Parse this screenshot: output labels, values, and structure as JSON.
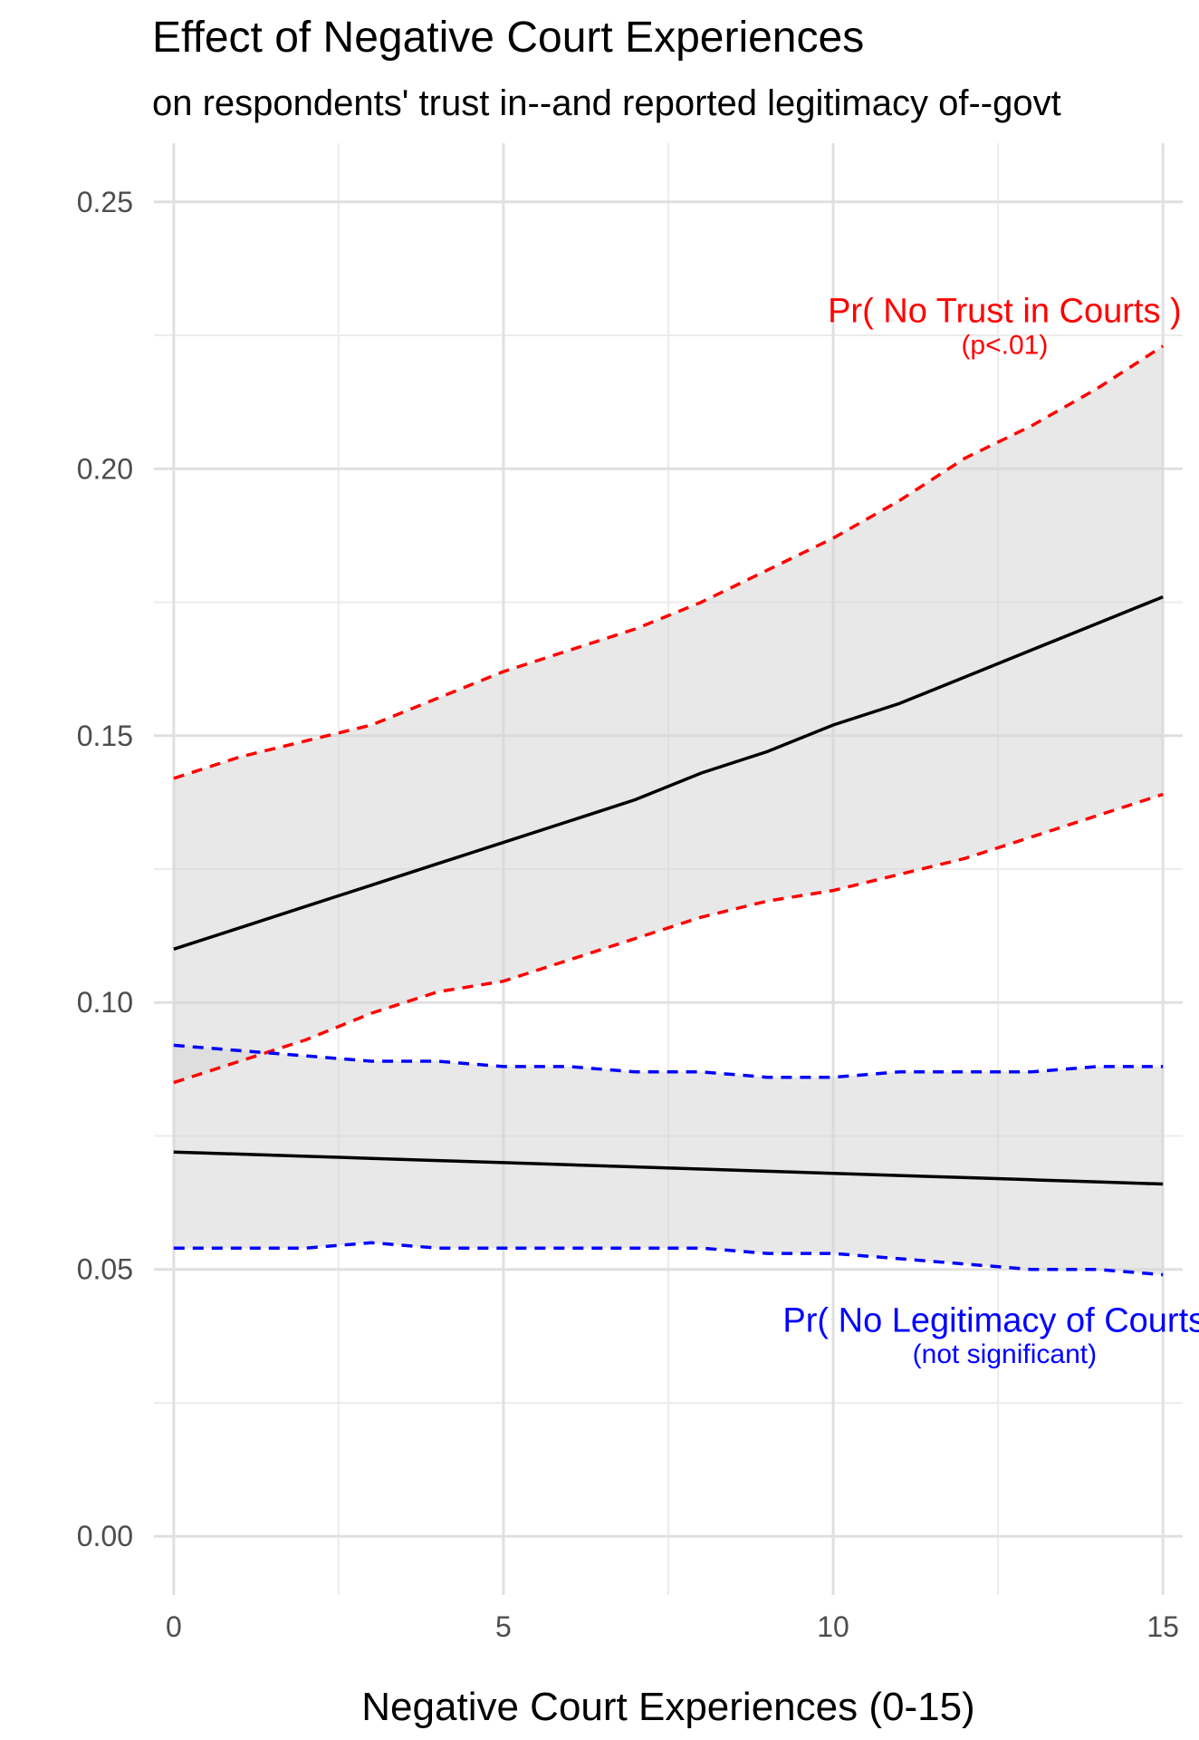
{
  "chart_data": {
    "type": "line",
    "title": "Effect of Negative Court Experiences",
    "subtitle": "on respondents' trust in--and reported legitimacy of--govt",
    "xlabel": "Negative Court Experiences (0-15)",
    "ylabel": "",
    "xlim": [
      -0.3,
      15.3
    ],
    "ylim": [
      -0.011,
      0.261
    ],
    "x_ticks": [
      0,
      5,
      10,
      15
    ],
    "x_tick_labels": [
      "0",
      "5",
      "10",
      "15"
    ],
    "y_ticks": [
      0.0,
      0.05,
      0.1,
      0.15,
      0.2,
      0.25
    ],
    "y_tick_labels": [
      "0.00",
      "0.05",
      "0.10",
      "0.15",
      "0.20",
      "0.25"
    ],
    "grid": true,
    "series": [
      {
        "name": "Pr( No Trust in Courts )",
        "note": "(p<.01)",
        "color": "#ff0000",
        "x": [
          0,
          1,
          2,
          3,
          4,
          5,
          6,
          7,
          8,
          9,
          10,
          11,
          12,
          13,
          14,
          15
        ],
        "estimate": [
          0.11,
          0.114,
          0.118,
          0.122,
          0.126,
          0.13,
          0.134,
          0.138,
          0.143,
          0.147,
          0.152,
          0.156,
          0.161,
          0.166,
          0.171,
          0.176
        ],
        "upper": [
          0.142,
          0.146,
          0.149,
          0.152,
          0.157,
          0.162,
          0.166,
          0.17,
          0.175,
          0.181,
          0.187,
          0.194,
          0.202,
          0.208,
          0.215,
          0.223
        ],
        "lower": [
          0.085,
          0.089,
          0.093,
          0.098,
          0.102,
          0.104,
          0.108,
          0.112,
          0.116,
          0.119,
          0.121,
          0.124,
          0.127,
          0.131,
          0.135,
          0.139
        ]
      },
      {
        "name": "Pr( No Legitimacy of Courts )",
        "note": "(not significant)",
        "color": "#0000ff",
        "x": [
          0,
          1,
          2,
          3,
          4,
          5,
          6,
          7,
          8,
          9,
          10,
          11,
          12,
          13,
          14,
          15
        ],
        "estimate": [
          0.072,
          0.0716,
          0.0712,
          0.0708,
          0.0704,
          0.07,
          0.0696,
          0.0692,
          0.0688,
          0.0684,
          0.068,
          0.0676,
          0.0672,
          0.0668,
          0.0664,
          0.066
        ],
        "upper": [
          0.092,
          0.091,
          0.09,
          0.089,
          0.089,
          0.088,
          0.088,
          0.087,
          0.087,
          0.086,
          0.086,
          0.087,
          0.087,
          0.087,
          0.088,
          0.088
        ],
        "lower": [
          0.054,
          0.054,
          0.054,
          0.055,
          0.054,
          0.054,
          0.054,
          0.054,
          0.054,
          0.053,
          0.053,
          0.052,
          0.051,
          0.05,
          0.05,
          0.049
        ]
      }
    ]
  }
}
